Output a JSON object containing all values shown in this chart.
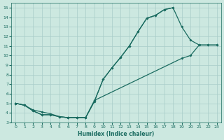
{
  "xlabel": "Humidex (Indice chaleur)",
  "bg_color": "#cce8e0",
  "grid_color": "#a8ccc8",
  "line_color": "#1a6b60",
  "xlim": [
    -0.5,
    23.5
  ],
  "ylim": [
    3,
    15.5
  ],
  "xticks": [
    0,
    1,
    2,
    3,
    4,
    5,
    6,
    7,
    8,
    9,
    10,
    11,
    12,
    13,
    14,
    15,
    16,
    17,
    18,
    19,
    20,
    21,
    22,
    23
  ],
  "yticks": [
    3,
    4,
    5,
    6,
    7,
    8,
    9,
    10,
    11,
    12,
    13,
    14,
    15
  ],
  "line_top_x": [
    0,
    1,
    2,
    3,
    4,
    5,
    6,
    7,
    8,
    9,
    10,
    11,
    12,
    13,
    14,
    15,
    16,
    17,
    18
  ],
  "line_top_y": [
    5.0,
    4.8,
    4.2,
    3.8,
    3.8,
    3.6,
    3.5,
    3.5,
    3.5,
    5.2,
    7.5,
    8.7,
    9.8,
    11.0,
    12.5,
    13.9,
    14.2,
    14.8,
    15.0
  ],
  "line_mid_x": [
    0,
    1,
    2,
    3,
    4,
    5,
    6,
    7,
    8,
    9,
    10,
    11,
    12,
    13,
    14,
    15,
    16,
    17,
    18,
    19,
    20,
    21,
    22,
    23
  ],
  "line_mid_y": [
    5.0,
    4.8,
    4.2,
    3.8,
    3.8,
    3.6,
    3.5,
    3.5,
    3.5,
    5.2,
    7.5,
    8.7,
    9.8,
    11.0,
    12.5,
    13.9,
    14.2,
    14.8,
    15.0,
    13.0,
    11.6,
    11.1,
    11.1,
    11.1
  ],
  "line_bot_x": [
    0,
    1,
    2,
    3,
    4,
    5,
    6,
    7,
    8,
    9,
    19,
    20,
    21,
    22,
    23
  ],
  "line_bot_y": [
    5.0,
    4.8,
    4.3,
    4.1,
    3.9,
    3.6,
    3.5,
    3.5,
    3.5,
    5.3,
    9.7,
    10.0,
    11.1,
    11.1,
    11.1
  ]
}
